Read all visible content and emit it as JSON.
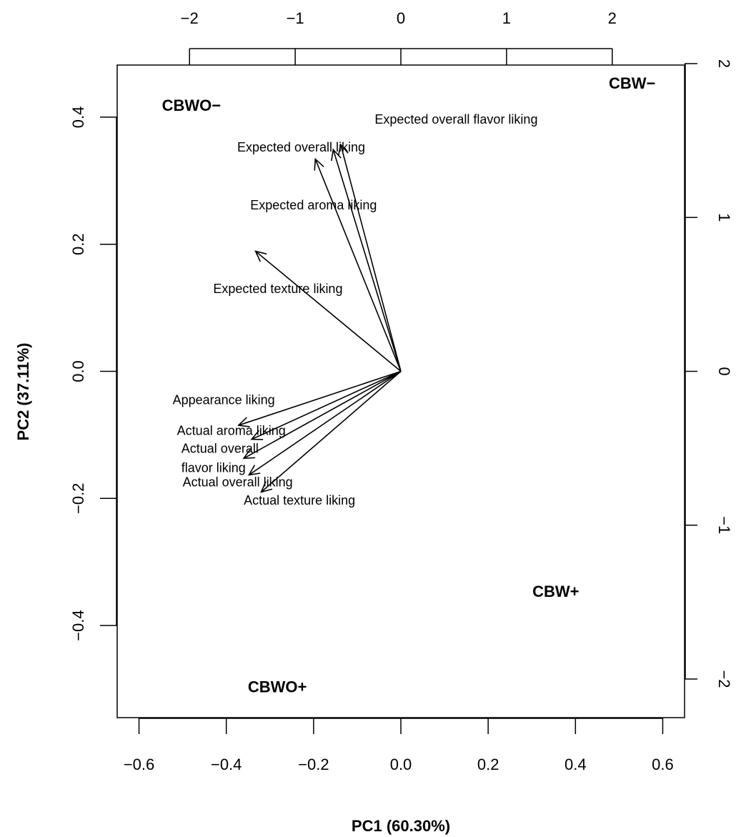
{
  "chart_data": {
    "type": "biplot",
    "title": "",
    "xlabel": "PC1 (60.30%)",
    "ylabel": "PC2 (37.11%)",
    "xlim": [
      -0.65,
      0.65
    ],
    "ylim": [
      -0.545,
      0.482
    ],
    "x_ticks": [
      -0.6,
      -0.4,
      -0.2,
      0.0,
      0.2,
      0.4,
      0.6
    ],
    "x_tick_labels": [
      "−0.6",
      "−0.4",
      "−0.2",
      "0.0",
      "0.2",
      "0.4",
      "0.6"
    ],
    "y_ticks": [
      -0.4,
      -0.2,
      0.0,
      0.2,
      0.4
    ],
    "y_tick_labels": [
      "−0.4",
      "−0.2",
      "0.0",
      "0.2",
      "0.4"
    ],
    "top_ticks": [
      -2,
      -1,
      0,
      1,
      2
    ],
    "top_tick_labels": [
      "−2",
      "−1",
      "0",
      "1",
      "2"
    ],
    "right_ticks": [
      -2,
      -1,
      0,
      1,
      2
    ],
    "right_tick_labels": [
      "−2",
      "−1",
      "0",
      "1",
      "2"
    ],
    "secondary_axis_scale": 4.13,
    "grid": false,
    "observations": [
      {
        "name": "CBWO−",
        "x": -0.48,
        "y": 0.41
      },
      {
        "name": "CBW−",
        "x": 0.53,
        "y": 0.445
      },
      {
        "name": "CBW+",
        "x": 0.355,
        "y": -0.355
      },
      {
        "name": "CBWO+",
        "x": -0.283,
        "y": -0.505
      }
    ],
    "variables": [
      {
        "name": "Expected overall flavor liking",
        "x": -0.138,
        "y": 0.357,
        "label_x": -0.06,
        "label_y": 0.39
      },
      {
        "name": "Expected overall liking",
        "x": -0.155,
        "y": 0.349,
        "label_x": -0.375,
        "label_y": 0.346
      },
      {
        "name": "Expected aroma liking",
        "x": -0.196,
        "y": 0.334,
        "label_x": -0.345,
        "label_y": 0.255
      },
      {
        "name": "Expected texture liking",
        "x": -0.333,
        "y": 0.189,
        "label_x": -0.43,
        "label_y": 0.123
      },
      {
        "name": "Appearance liking",
        "x": -0.372,
        "y": -0.085,
        "label_x": -0.523,
        "label_y": -0.052
      },
      {
        "name": "Actual aroma liking",
        "x": -0.342,
        "y": -0.107,
        "label_x": -0.513,
        "label_y": -0.1
      },
      {
        "name": "Actual overall flavor liking",
        "x": -0.36,
        "y": -0.137,
        "label_x": -0.503,
        "label_y": -0.128
      },
      {
        "name": "Actual overall liking",
        "x": -0.348,
        "y": -0.163,
        "label_x": -0.5,
        "label_y": -0.181
      },
      {
        "name": "Actual texture liking",
        "x": -0.32,
        "y": -0.19,
        "label_x": -0.36,
        "label_y": -0.21
      }
    ]
  }
}
